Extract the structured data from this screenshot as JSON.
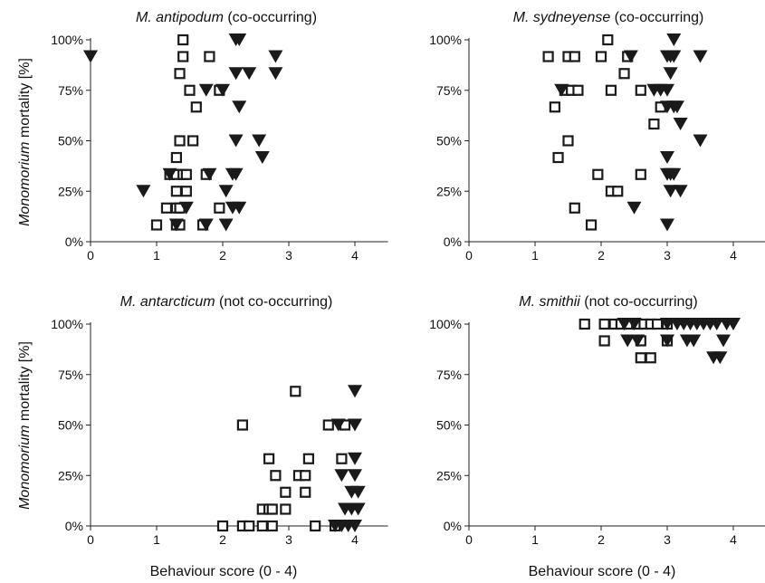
{
  "figure": {
    "ylabel_italic": "Monomorium",
    "ylabel_rest": " mortality [%]",
    "xlabel": "Behaviour score (0 - 4)"
  },
  "chart_data": [
    {
      "type": "scatter",
      "species": "M. antipodum",
      "suffix": " (co-occurring)",
      "xlim": [
        0,
        4.5
      ],
      "ylim": [
        0,
        100
      ],
      "xticks": [
        "0",
        "1",
        "2",
        "3",
        "4"
      ],
      "yticks": [
        "0%",
        "25%",
        "50%",
        "75%",
        "100%"
      ],
      "grid": false,
      "series": [
        {
          "marker": "open-square",
          "points": [
            [
              1.4,
              100
            ],
            [
              1.4,
              91.7
            ],
            [
              1.8,
              91.7
            ],
            [
              1.35,
              83.3
            ],
            [
              1.5,
              75
            ],
            [
              1.6,
              66.7
            ],
            [
              1.95,
              75
            ],
            [
              1.35,
              50
            ],
            [
              1.55,
              50
            ],
            [
              1.3,
              41.7
            ],
            [
              1.2,
              33.3
            ],
            [
              1.3,
              33.3
            ],
            [
              1.4,
              33.3
            ],
            [
              1.45,
              33.3
            ],
            [
              1.75,
              33.3
            ],
            [
              1.3,
              25
            ],
            [
              1.45,
              25
            ],
            [
              1.15,
              16.7
            ],
            [
              1.3,
              16.7
            ],
            [
              1.35,
              16.7
            ],
            [
              1.95,
              16.7
            ],
            [
              1.0,
              8.3
            ],
            [
              1.3,
              8.3
            ],
            [
              1.35,
              8.3
            ],
            [
              1.7,
              8.3
            ]
          ]
        },
        {
          "marker": "filled-triangle-down",
          "points": [
            [
              0.0,
              91.7
            ],
            [
              2.2,
              100
            ],
            [
              2.25,
              100
            ],
            [
              2.8,
              91.7
            ],
            [
              2.8,
              83.3
            ],
            [
              2.2,
              83.3
            ],
            [
              2.4,
              83.3
            ],
            [
              1.75,
              75
            ],
            [
              2.0,
              75
            ],
            [
              2.25,
              66.7
            ],
            [
              2.2,
              50
            ],
            [
              2.55,
              50
            ],
            [
              2.6,
              41.7
            ],
            [
              1.2,
              33.3
            ],
            [
              1.8,
              33.3
            ],
            [
              2.15,
              33.3
            ],
            [
              2.2,
              33.3
            ],
            [
              0.8,
              25
            ],
            [
              2.05,
              25
            ],
            [
              1.45,
              16.7
            ],
            [
              2.15,
              16.7
            ],
            [
              2.25,
              16.7
            ],
            [
              1.3,
              8.3
            ],
            [
              1.75,
              8.3
            ],
            [
              2.05,
              8.3
            ]
          ]
        }
      ]
    },
    {
      "type": "scatter",
      "species": "M. sydneyense",
      "suffix": " (co-occurring)",
      "xlim": [
        0,
        4.5
      ],
      "ylim": [
        0,
        100
      ],
      "xticks": [
        "0",
        "1",
        "2",
        "3",
        "4"
      ],
      "yticks": [
        "0%",
        "25%",
        "50%",
        "75%",
        "100%"
      ],
      "grid": false,
      "series": [
        {
          "marker": "open-square",
          "points": [
            [
              2.1,
              100
            ],
            [
              1.2,
              91.7
            ],
            [
              1.5,
              91.7
            ],
            [
              1.6,
              91.7
            ],
            [
              2.0,
              91.7
            ],
            [
              2.4,
              91.7
            ],
            [
              2.35,
              83.3
            ],
            [
              1.45,
              75
            ],
            [
              1.55,
              75
            ],
            [
              1.65,
              75
            ],
            [
              2.15,
              75
            ],
            [
              2.6,
              75
            ],
            [
              1.3,
              66.7
            ],
            [
              2.9,
              66.7
            ],
            [
              2.8,
              58.3
            ],
            [
              1.5,
              50
            ],
            [
              1.35,
              41.7
            ],
            [
              1.95,
              33.3
            ],
            [
              2.6,
              33.3
            ],
            [
              2.15,
              25
            ],
            [
              2.25,
              25
            ],
            [
              1.6,
              16.7
            ],
            [
              1.85,
              8.3
            ]
          ]
        },
        {
          "marker": "filled-triangle-down",
          "points": [
            [
              3.1,
              100
            ],
            [
              2.45,
              91.7
            ],
            [
              3.0,
              91.7
            ],
            [
              3.05,
              91.7
            ],
            [
              3.1,
              91.7
            ],
            [
              3.5,
              91.7
            ],
            [
              3.05,
              83.3
            ],
            [
              1.4,
              75
            ],
            [
              2.8,
              75
            ],
            [
              2.9,
              75
            ],
            [
              3.0,
              75
            ],
            [
              3.0,
              66.7
            ],
            [
              3.1,
              66.7
            ],
            [
              3.15,
              66.7
            ],
            [
              3.2,
              58.3
            ],
            [
              3.5,
              50
            ],
            [
              3.0,
              41.7
            ],
            [
              3.0,
              33.3
            ],
            [
              3.05,
              33.3
            ],
            [
              3.1,
              33.3
            ],
            [
              3.05,
              25
            ],
            [
              3.2,
              25
            ],
            [
              2.5,
              16.7
            ],
            [
              3.0,
              8.3
            ]
          ]
        }
      ]
    },
    {
      "type": "scatter",
      "species": "M. antarcticum",
      "suffix": " (not co-occurring)",
      "xlim": [
        0,
        4.5
      ],
      "ylim": [
        0,
        100
      ],
      "xticks": [
        "0",
        "1",
        "2",
        "3",
        "4"
      ],
      "yticks": [
        "0%",
        "25%",
        "50%",
        "75%",
        "100%"
      ],
      "grid": false,
      "series": [
        {
          "marker": "open-square",
          "points": [
            [
              3.1,
              66.7
            ],
            [
              2.3,
              50
            ],
            [
              3.6,
              50
            ],
            [
              3.85,
              50
            ],
            [
              2.7,
              33.3
            ],
            [
              3.3,
              33.3
            ],
            [
              3.8,
              33.3
            ],
            [
              2.8,
              25
            ],
            [
              3.15,
              25
            ],
            [
              3.25,
              25
            ],
            [
              2.95,
              16.7
            ],
            [
              3.25,
              16.7
            ],
            [
              2.6,
              8.3
            ],
            [
              2.7,
              8.3
            ],
            [
              2.75,
              8.3
            ],
            [
              2.95,
              8.3
            ],
            [
              2.0,
              0
            ],
            [
              2.3,
              0
            ],
            [
              2.4,
              0
            ],
            [
              2.6,
              0
            ],
            [
              2.75,
              0
            ],
            [
              3.4,
              0
            ],
            [
              3.7,
              0
            ]
          ]
        },
        {
          "marker": "filled-triangle-down",
          "points": [
            [
              4.0,
              66.7
            ],
            [
              4.0,
              50
            ],
            [
              3.75,
              50
            ],
            [
              4.0,
              33.3
            ],
            [
              3.8,
              25
            ],
            [
              4.0,
              25
            ],
            [
              3.95,
              16.7
            ],
            [
              4.05,
              16.7
            ],
            [
              3.85,
              8.3
            ],
            [
              3.95,
              8.3
            ],
            [
              4.05,
              8.3
            ],
            [
              3.7,
              0
            ],
            [
              3.8,
              0
            ],
            [
              3.9,
              0
            ],
            [
              4.0,
              0
            ]
          ]
        }
      ]
    },
    {
      "type": "scatter",
      "species": "M. smithii",
      "suffix": " (not co-occurring)",
      "xlim": [
        0,
        4.5
      ],
      "ylim": [
        0,
        100
      ],
      "xticks": [
        "0",
        "1",
        "2",
        "3",
        "4"
      ],
      "yticks": [
        "0%",
        "25%",
        "50%",
        "75%",
        "100%"
      ],
      "grid": false,
      "series": [
        {
          "marker": "open-square",
          "points": [
            [
              1.75,
              100
            ],
            [
              2.05,
              100
            ],
            [
              2.2,
              100
            ],
            [
              2.3,
              100
            ],
            [
              2.4,
              100
            ],
            [
              2.55,
              100
            ],
            [
              2.65,
              100
            ],
            [
              2.75,
              100
            ],
            [
              2.85,
              100
            ],
            [
              3.0,
              100
            ],
            [
              2.05,
              91.7
            ],
            [
              2.6,
              91.7
            ],
            [
              3.0,
              91.7
            ],
            [
              2.6,
              83.3
            ],
            [
              2.75,
              83.3
            ]
          ]
        },
        {
          "marker": "filled-triangle-down",
          "points": [
            [
              2.35,
              100
            ],
            [
              2.5,
              100
            ],
            [
              3.0,
              100
            ],
            [
              3.15,
              100
            ],
            [
              3.25,
              100
            ],
            [
              3.35,
              100
            ],
            [
              3.45,
              100
            ],
            [
              3.55,
              100
            ],
            [
              3.65,
              100
            ],
            [
              3.75,
              100
            ],
            [
              3.9,
              100
            ],
            [
              4.0,
              100
            ],
            [
              2.4,
              91.7
            ],
            [
              2.55,
              91.7
            ],
            [
              3.0,
              91.7
            ],
            [
              3.3,
              91.7
            ],
            [
              3.4,
              91.7
            ],
            [
              3.85,
              91.7
            ],
            [
              3.7,
              83.3
            ],
            [
              3.8,
              83.3
            ]
          ]
        }
      ]
    }
  ]
}
